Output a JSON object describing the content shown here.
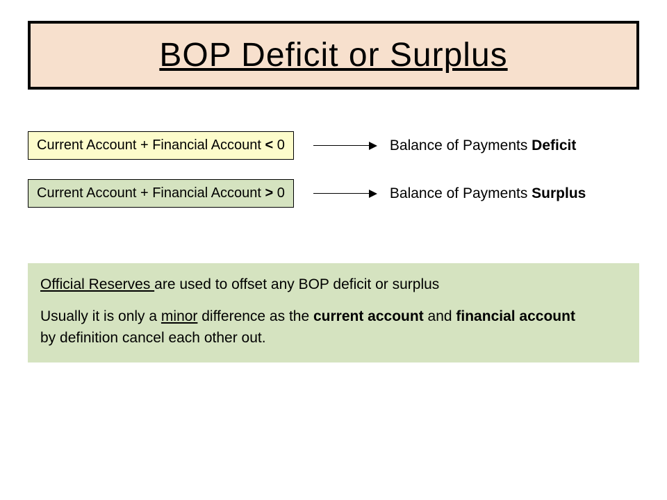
{
  "title": {
    "text": "BOP Deficit or Surplus",
    "background_color": "#f7e0cd",
    "border_color": "#000000",
    "font_size": 48
  },
  "rows": [
    {
      "formula_prefix": "Current Account + Financial Account ",
      "operator": "<",
      "formula_suffix": " 0",
      "box_color": "#fdfccb",
      "result_prefix": "Balance of Payments ",
      "result_bold": "Deficit"
    },
    {
      "formula_prefix": "Current Account + Financial Account ",
      "operator": ">",
      "formula_suffix": " 0",
      "box_color": "#d5e3c0",
      "result_prefix": "Balance of Payments ",
      "result_bold": "Surplus"
    }
  ],
  "note": {
    "background_color": "#d5e3c0",
    "line1_underlined": "Official Reserves ",
    "line1_rest": "are used to offset any BOP deficit or surplus",
    "line2_a": "Usually it is only a ",
    "line2_minor": "minor",
    "line2_b": " difference as the ",
    "line2_bold1": "current account",
    "line2_c": " and ",
    "line2_bold2": "financial account",
    "line3": "by definition cancel each other out."
  },
  "colors": {
    "page_bg": "#ffffff",
    "arrow_color": "#000000"
  }
}
